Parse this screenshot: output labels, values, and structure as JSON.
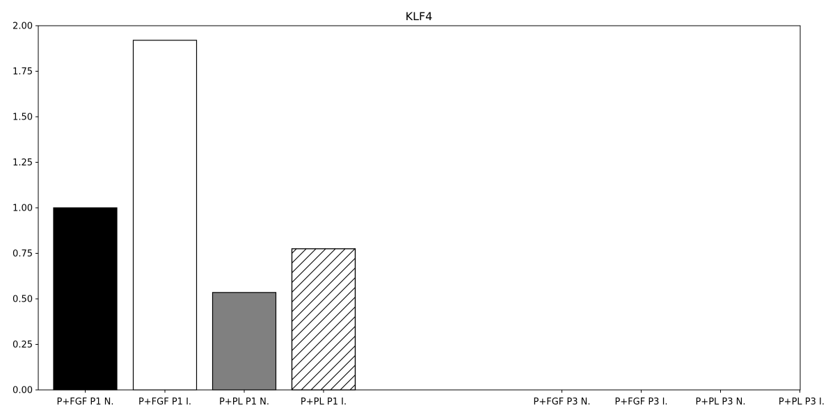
{
  "chart_data": {
    "type": "bar",
    "title": "KLF4",
    "xlabel": "",
    "ylabel": "",
    "ylim": [
      0,
      2.0
    ],
    "yticks": [
      "0.00",
      "0.25",
      "0.50",
      "0.75",
      "1.00",
      "1.25",
      "1.50",
      "1.75",
      "2.00"
    ],
    "grid": false,
    "categories": [
      "P+FGF P1 N.",
      "P+FGF P1 I.",
      "P+PL P1 N.",
      "P+PL P1 I.",
      "P+FGF P3 N.",
      "P+FGF P3 I.",
      "P+PL P3 N.",
      "P+PL P3 I."
    ],
    "values": [
      1.0,
      1.92,
      0.535,
      0.775,
      null,
      null,
      null,
      null
    ],
    "bar_styles": [
      {
        "fill": "#000000",
        "hatch": false
      },
      {
        "fill": "#ffffff",
        "hatch": false
      },
      {
        "fill": "#808080",
        "hatch": false
      },
      {
        "fill": "#ffffff",
        "hatch": true
      },
      {
        "fill": "#000000",
        "hatch": false
      },
      {
        "fill": "#ffffff",
        "hatch": false
      },
      {
        "fill": "#808080",
        "hatch": false
      },
      {
        "fill": "#ffffff",
        "hatch": true
      }
    ],
    "edge_color": "#000000"
  }
}
